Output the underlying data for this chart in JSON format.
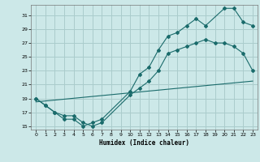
{
  "xlabel": "Humidex (Indice chaleur)",
  "background_color": "#cce8e8",
  "grid_color": "#aacccc",
  "line_color": "#1a6b6b",
  "xlim": [
    -0.5,
    23.5
  ],
  "ylim": [
    14.5,
    32.5
  ],
  "xticks": [
    0,
    1,
    2,
    3,
    4,
    5,
    6,
    7,
    8,
    9,
    10,
    11,
    12,
    13,
    14,
    15,
    16,
    17,
    18,
    19,
    20,
    21,
    22,
    23
  ],
  "yticks": [
    15,
    17,
    19,
    21,
    23,
    25,
    27,
    29,
    31
  ],
  "line1_x": [
    0,
    1,
    2,
    3,
    4,
    5,
    6,
    7,
    10,
    11,
    12,
    13,
    14,
    15,
    16,
    17,
    18,
    20,
    21,
    22,
    23
  ],
  "line1_y": [
    19,
    18,
    17,
    16,
    16,
    15,
    15.5,
    16,
    20,
    22.5,
    23.5,
    26,
    28,
    28.5,
    29.5,
    30.5,
    29.5,
    32,
    32,
    30,
    29.5
  ],
  "line2_x": [
    0,
    1,
    2,
    3,
    4,
    5,
    6,
    7,
    10,
    11,
    12,
    13,
    14,
    15,
    16,
    17,
    18,
    19,
    20,
    21,
    22,
    23
  ],
  "line2_y": [
    19,
    18,
    17,
    16.5,
    16.5,
    15.5,
    15,
    15.5,
    19.5,
    20.5,
    21.5,
    23,
    25.5,
    26,
    26.5,
    27,
    27.5,
    27,
    27,
    26.5,
    25.5,
    23
  ],
  "line3_x": [
    0,
    23
  ],
  "line3_y": [
    18.5,
    21.5
  ]
}
